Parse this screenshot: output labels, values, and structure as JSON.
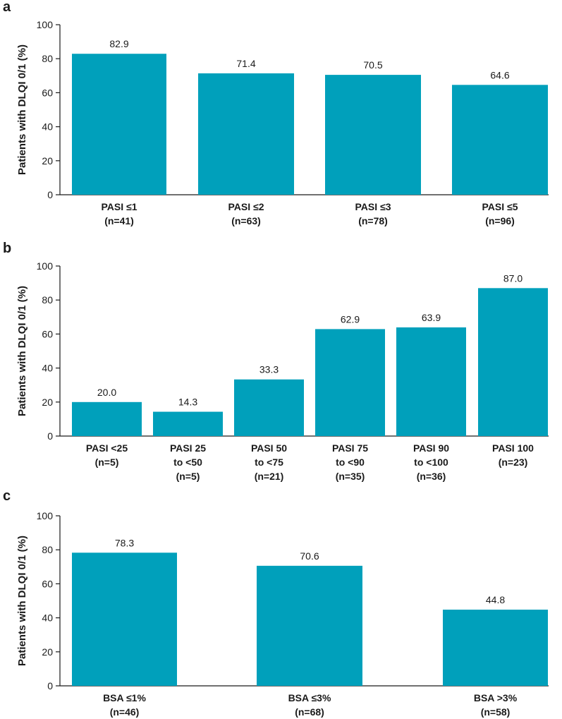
{
  "colors": {
    "bar": "#00a0bb",
    "axis": "#1a1a1a"
  },
  "chart_data": [
    {
      "panel": "a",
      "type": "bar",
      "ylabel": "Patients with DLQI 0/1 (%)",
      "ylim": [
        0,
        100
      ],
      "yticks": [
        0,
        20,
        40,
        60,
        80,
        100
      ],
      "categories": [
        [
          "PASI ≤1",
          "(n=41)"
        ],
        [
          "PASI ≤2",
          "(n=63)"
        ],
        [
          "PASI ≤3",
          "(n=78)"
        ],
        [
          "PASI ≤5",
          "(n=96)"
        ]
      ],
      "values": [
        82.9,
        71.4,
        70.5,
        64.6
      ],
      "value_labels": [
        "82.9",
        "71.4",
        "70.5",
        "64.6"
      ]
    },
    {
      "panel": "b",
      "type": "bar",
      "ylabel": "Patients with DLQI 0/1 (%)",
      "ylim": [
        0,
        100
      ],
      "yticks": [
        0,
        20,
        40,
        60,
        80,
        100
      ],
      "categories": [
        [
          "PASI <25",
          "(n=5)"
        ],
        [
          "PASI 25",
          "to <50",
          "(n=5)"
        ],
        [
          "PASI 50",
          "to <75",
          "(n=21)"
        ],
        [
          "PASI 75",
          "to <90",
          "(n=35)"
        ],
        [
          "PASI 90",
          "to <100",
          "(n=36)"
        ],
        [
          "PASI 100",
          "(n=23)"
        ]
      ],
      "values": [
        20.0,
        14.3,
        33.3,
        62.9,
        63.9,
        87.0
      ],
      "value_labels": [
        "20.0",
        "14.3",
        "33.3",
        "62.9",
        "63.9",
        "87.0"
      ]
    },
    {
      "panel": "c",
      "type": "bar",
      "ylabel": "Patients with DLQI 0/1 (%)",
      "ylim": [
        0,
        100
      ],
      "yticks": [
        0,
        20,
        40,
        60,
        80,
        100
      ],
      "categories": [
        [
          "BSA ≤1%",
          "(n=46)"
        ],
        [
          "BSA ≤3%",
          "(n=68)"
        ],
        [
          "BSA >3%",
          "(n=58)"
        ]
      ],
      "values": [
        78.3,
        70.6,
        44.8
      ],
      "value_labels": [
        "78.3",
        "70.6",
        "44.8"
      ]
    }
  ]
}
